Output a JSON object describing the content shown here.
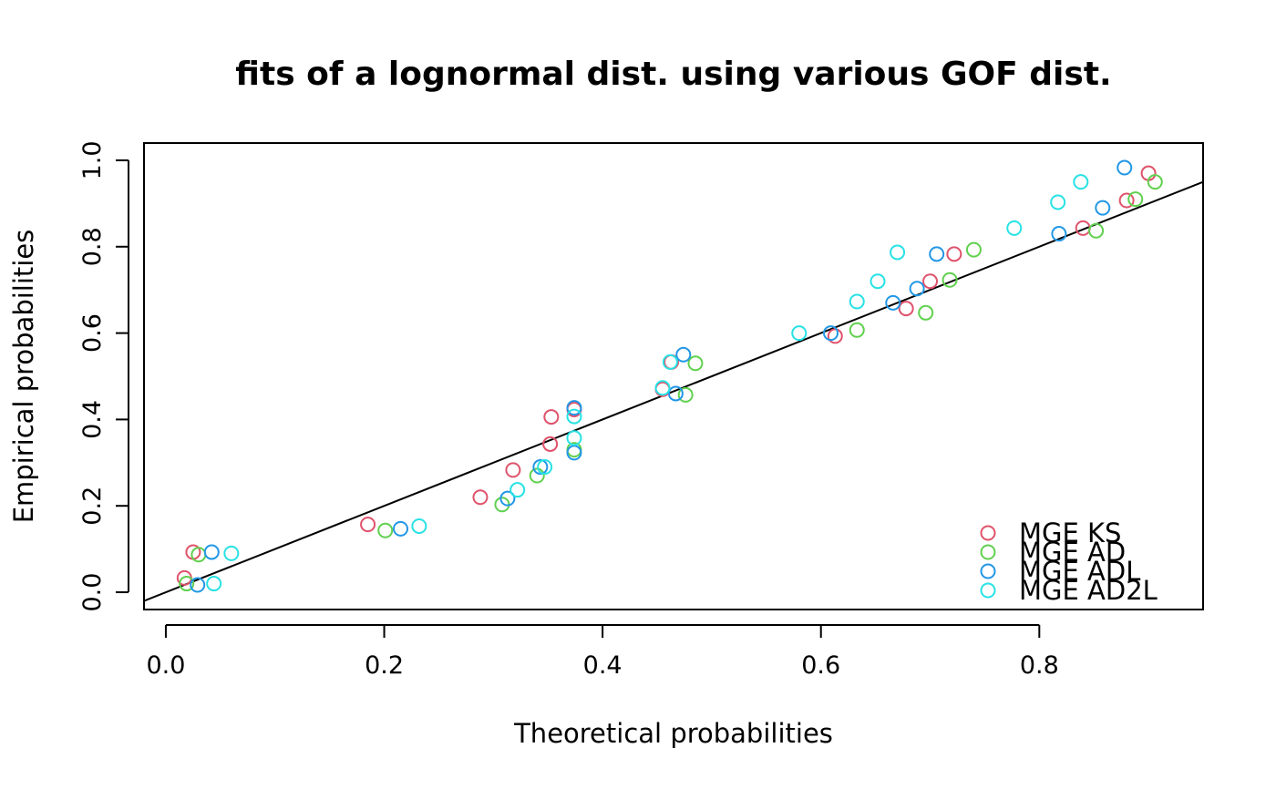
{
  "chart_data": {
    "type": "scatter",
    "title": "fits of a lognormal dist. using various GOF dist.",
    "xlabel": "Theoretical probabilities",
    "ylabel": "Empirical probabilities",
    "xlim": [
      -0.02,
      0.95
    ],
    "ylim": [
      0.0,
      1.0
    ],
    "xticks": [
      "0.0",
      "0.2",
      "0.4",
      "0.6",
      "0.8"
    ],
    "yticks": [
      "0.0",
      "0.2",
      "0.4",
      "0.6",
      "0.8",
      "1.0"
    ],
    "grid": false,
    "legend_position": "bottom-right",
    "reference_line": {
      "x": [
        0.0,
        0.95
      ],
      "y": [
        0.0,
        0.95
      ],
      "color": "#000000"
    },
    "series": [
      {
        "name": "MGE KS",
        "color": "#DF536B",
        "marker": "open-circle",
        "x": [
          0.017,
          0.025,
          0.185,
          0.288,
          0.318,
          0.352,
          0.353,
          0.374,
          0.455,
          0.463,
          0.613,
          0.678,
          0.7,
          0.722,
          0.84,
          0.88,
          0.9
        ],
        "y": [
          0.033,
          0.093,
          0.157,
          0.22,
          0.283,
          0.343,
          0.406,
          0.423,
          0.47,
          0.533,
          0.593,
          0.657,
          0.72,
          0.783,
          0.843,
          0.907,
          0.97
        ]
      },
      {
        "name": "MGE AD",
        "color": "#61D04F",
        "marker": "open-circle",
        "x": [
          0.019,
          0.03,
          0.201,
          0.308,
          0.34,
          0.374,
          0.476,
          0.485,
          0.633,
          0.696,
          0.718,
          0.74,
          0.852,
          0.888,
          0.906
        ],
        "y": [
          0.02,
          0.087,
          0.143,
          0.203,
          0.27,
          0.33,
          0.457,
          0.53,
          0.607,
          0.647,
          0.723,
          0.793,
          0.837,
          0.91,
          0.95
        ]
      },
      {
        "name": "MGE ADL",
        "color": "#2297E6",
        "marker": "open-circle",
        "x": [
          0.029,
          0.042,
          0.215,
          0.313,
          0.343,
          0.374,
          0.374,
          0.467,
          0.474,
          0.609,
          0.666,
          0.688,
          0.706,
          0.818,
          0.858,
          0.878
        ],
        "y": [
          0.017,
          0.093,
          0.147,
          0.217,
          0.29,
          0.323,
          0.427,
          0.46,
          0.55,
          0.6,
          0.67,
          0.703,
          0.783,
          0.83,
          0.89,
          0.983
        ]
      },
      {
        "name": "MGE AD2L",
        "color": "#28E2E5",
        "marker": "open-circle",
        "x": [
          0.044,
          0.06,
          0.232,
          0.322,
          0.347,
          0.374,
          0.374,
          0.455,
          0.462,
          0.58,
          0.633,
          0.652,
          0.67,
          0.777,
          0.817,
          0.838
        ],
        "y": [
          0.02,
          0.09,
          0.153,
          0.237,
          0.29,
          0.357,
          0.407,
          0.473,
          0.533,
          0.6,
          0.673,
          0.72,
          0.787,
          0.843,
          0.903,
          0.95
        ]
      }
    ]
  }
}
